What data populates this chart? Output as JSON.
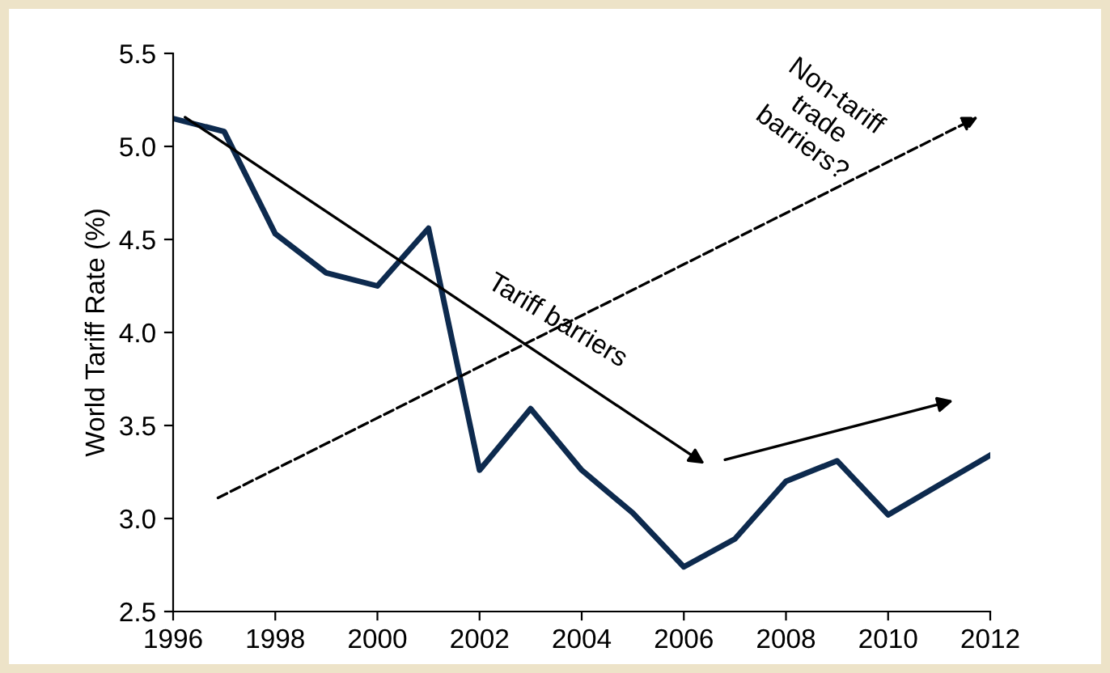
{
  "chart_data": {
    "type": "line",
    "ylabel": "World Tariff Rate (%)",
    "x": [
      1996,
      1997,
      1998,
      1999,
      2000,
      2001,
      2002,
      2003,
      2004,
      2005,
      2006,
      2007,
      2008,
      2009,
      2010,
      2011,
      2012
    ],
    "series": [
      {
        "color": "#0d2a4e",
        "values": [
          5.15,
          5.08,
          4.53,
          4.32,
          4.25,
          4.56,
          3.26,
          3.59,
          3.26,
          3.03,
          2.74,
          2.89,
          3.2,
          3.31,
          3.02,
          3.18,
          3.34
        ]
      }
    ],
    "xlim": [
      1996,
      2012
    ],
    "xticks": [
      1996,
      1998,
      2000,
      2002,
      2004,
      2006,
      2008,
      2010,
      2012
    ],
    "ylim": [
      2.5,
      5.5
    ],
    "yticks": [
      2.5,
      {
        "value": 3,
        "label": "3.0"
      },
      3.5,
      {
        "value": 4,
        "label": "4.0"
      },
      4.5,
      {
        "value": 5,
        "label": "5.0"
      },
      5.5
    ],
    "grid": false,
    "legend": false,
    "marker": "none",
    "line_style": "solid",
    "annotations": [
      "Tariff barriers",
      "Non-tariff\ntrade\nbarriers?"
    ]
  }
}
